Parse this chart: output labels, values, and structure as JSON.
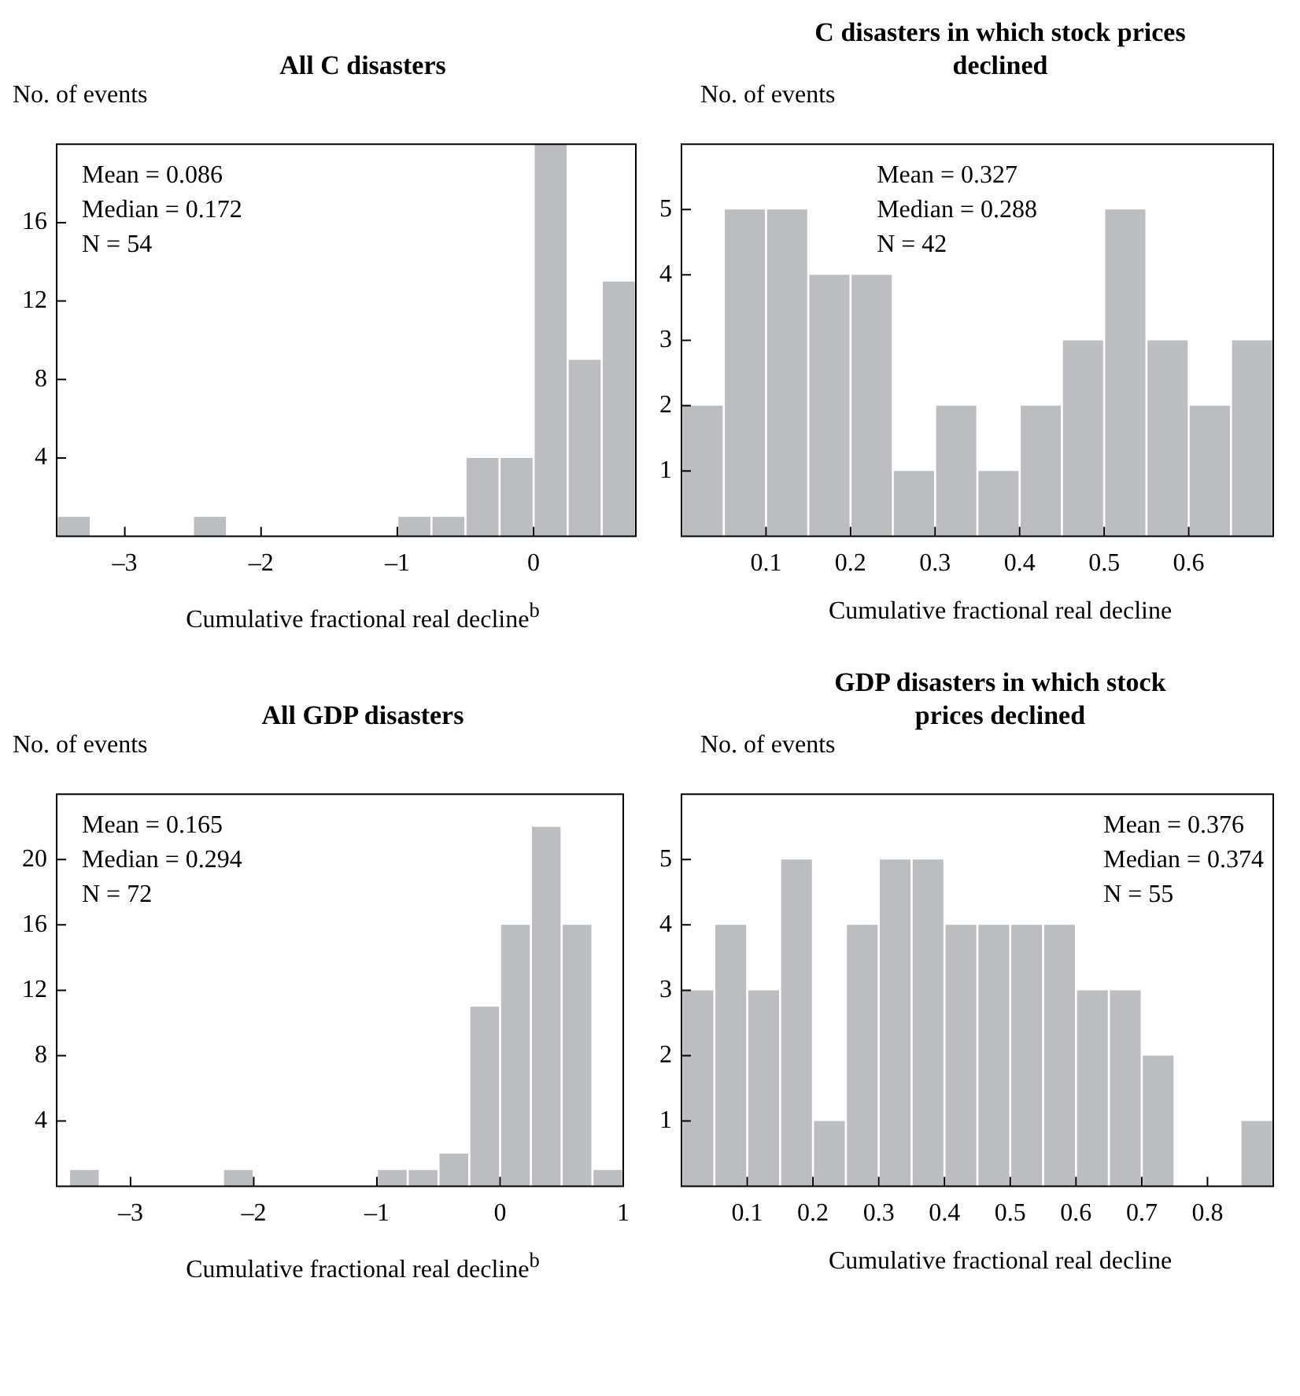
{
  "chart_data": [
    {
      "type": "histogram",
      "title": "All C disasters",
      "ylabel": "No. of events",
      "xlabel": "Cumulative fractional real decline$^{b}$",
      "color": "#bcbdc0",
      "bins": [
        -3.5,
        -3.25,
        -3,
        -2.75,
        -2.5,
        -2.25,
        -2,
        -1.75,
        -1.5,
        -1.25,
        -1,
        -0.75,
        -0.5,
        -0.25,
        0,
        0.25,
        0.5,
        0.75
      ],
      "values": [
        1,
        0,
        0,
        0,
        1,
        0,
        0,
        0,
        0,
        0,
        1,
        1,
        4,
        4,
        20,
        9,
        13
      ],
      "xlim": [
        -3.5,
        0.75
      ],
      "ylim": [
        0,
        20
      ],
      "xticks": [
        {
          "value": -3,
          "label": "–3"
        },
        {
          "value": -2,
          "label": "–2"
        },
        {
          "value": -1,
          "label": "–1"
        },
        0
      ],
      "yticks": [
        4,
        8,
        12,
        16
      ],
      "annotations": [
        "Mean = 0.086",
        "Median = 0.172",
        "N = 54"
      ]
    },
    {
      "type": "histogram",
      "title": "C disasters in which stock prices declined",
      "ylabel": "No. of events",
      "xlabel": "Cumulative fractional real decline",
      "color": "#bcbdc0",
      "bins": [
        0,
        0.05,
        0.1,
        0.15,
        0.2,
        0.25,
        0.3,
        0.35,
        0.4,
        0.45,
        0.5,
        0.55,
        0.6,
        0.65,
        0.7
      ],
      "values": [
        2,
        5,
        5,
        4,
        4,
        1,
        2,
        1,
        2,
        3,
        5,
        3,
        2,
        3
      ],
      "xlim": [
        0,
        0.7
      ],
      "ylim": [
        0,
        6
      ],
      "xticks": [
        0.1,
        0.2,
        0.3,
        0.4,
        0.5,
        0.6
      ],
      "yticks": [
        1,
        2,
        3,
        4,
        5
      ],
      "annotations": [
        "Mean = 0.327",
        "Median = 0.288",
        "N = 42"
      ]
    },
    {
      "type": "histogram",
      "title": "All GDP disasters",
      "ylabel": "No. of events",
      "xlabel": "Cumulative fractional real decline$^{b}$",
      "color": "#bcbdc0",
      "bins": [
        -3.5,
        -3.25,
        -3,
        -2.75,
        -2.5,
        -2.25,
        -2,
        -1.75,
        -1.5,
        -1.25,
        -1,
        -0.75,
        -0.5,
        -0.25,
        0,
        0.25,
        0.5,
        0.75,
        1
      ],
      "values": [
        1,
        0,
        0,
        0,
        0,
        1,
        0,
        0,
        0,
        0,
        1,
        1,
        2,
        11,
        16,
        22,
        16,
        1
      ],
      "xlim": [
        -3.6,
        1
      ],
      "ylim": [
        0,
        24
      ],
      "xticks": [
        {
          "value": -3,
          "label": "–3"
        },
        {
          "value": -2,
          "label": "–2"
        },
        {
          "value": -1,
          "label": "–1"
        },
        0,
        1
      ],
      "yticks": [
        4,
        8,
        12,
        16,
        20
      ],
      "annotations": [
        "Mean = 0.165",
        "Median = 0.294",
        "N = 72"
      ]
    },
    {
      "type": "histogram",
      "title": "GDP disasters in which stock prices declined",
      "ylabel": "No. of events",
      "xlabel": "Cumulative fractional real decline",
      "color": "#bcbdc0",
      "bins": [
        0,
        0.05,
        0.1,
        0.15,
        0.2,
        0.25,
        0.3,
        0.35,
        0.4,
        0.45,
        0.5,
        0.55,
        0.6,
        0.65,
        0.7,
        0.75,
        0.8,
        0.85,
        0.9
      ],
      "values": [
        3,
        4,
        3,
        5,
        1,
        4,
        5,
        5,
        4,
        4,
        4,
        4,
        3,
        3,
        2,
        0,
        0,
        1
      ],
      "xlim": [
        0,
        0.9
      ],
      "ylim": [
        0,
        6
      ],
      "xticks": [
        0.1,
        0.2,
        0.3,
        0.4,
        0.5,
        0.6,
        0.7,
        0.8
      ],
      "yticks": [
        1,
        2,
        3,
        4,
        5
      ],
      "annotations": [
        "Mean = 0.376",
        "Median = 0.374",
        "N = 55"
      ]
    }
  ]
}
